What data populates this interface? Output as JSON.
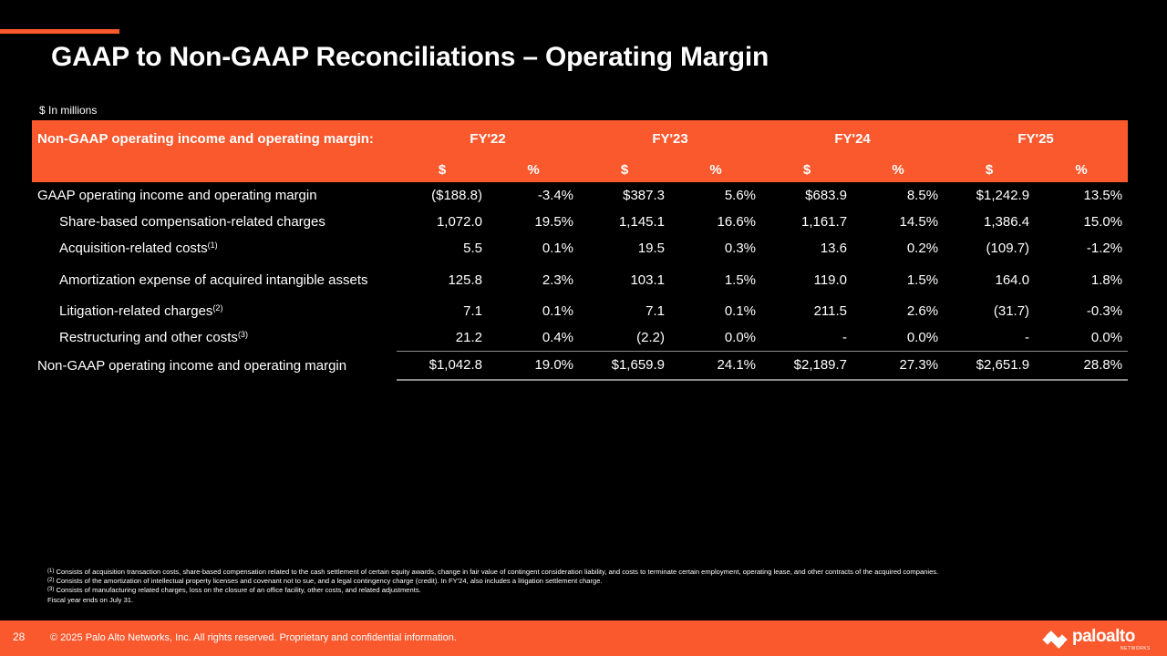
{
  "title": "GAAP to Non-GAAP Reconciliations – Operating Margin",
  "units": "$ In millions",
  "table": {
    "header_label": "Non-GAAP operating income and operating margin:",
    "years": [
      "FY'22",
      "FY'23",
      "FY'24",
      "FY'25"
    ],
    "sub_headers": {
      "dollar": "$",
      "percent": "%"
    },
    "rows": [
      {
        "label": "GAAP operating income and operating margin",
        "sup": "",
        "values": [
          "($188.8)",
          "-3.4%",
          "$387.3",
          "5.6%",
          "$683.9",
          "8.5%",
          "$1,242.9",
          "13.5%"
        ]
      },
      {
        "label": "Share-based compensation-related charges",
        "sup": "",
        "values": [
          "1,072.0",
          "19.5%",
          "1,145.1",
          "16.6%",
          "1,161.7",
          "14.5%",
          "1,386.4",
          "15.0%"
        ]
      },
      {
        "label": "Acquisition-related costs",
        "sup": "(1)",
        "values": [
          "5.5",
          "0.1%",
          "19.5",
          "0.3%",
          "13.6",
          "0.2%",
          "(109.7)",
          "-1.2%"
        ]
      },
      {
        "label": "Amortization expense of acquired intangible assets",
        "sup": "",
        "values": [
          "125.8",
          "2.3%",
          "103.1",
          "1.5%",
          "119.0",
          "1.5%",
          "164.0",
          "1.8%"
        ]
      },
      {
        "label": "Litigation-related charges",
        "sup": "(2)",
        "values": [
          "7.1",
          "0.1%",
          "7.1",
          "0.1%",
          "211.5",
          "2.6%",
          "(31.7)",
          "-0.3%"
        ]
      },
      {
        "label": "Restructuring and other costs",
        "sup": "(3)",
        "values": [
          "21.2",
          "0.4%",
          "(2.2)",
          "0.0%",
          "-",
          "0.0%",
          "-",
          "0.0%"
        ]
      },
      {
        "label": "Non-GAAP operating income and operating margin",
        "sup": "",
        "values": [
          "$1,042.8",
          "19.0%",
          "$1,659.9",
          "24.1%",
          "$2,189.7",
          "27.3%",
          "$2,651.9",
          "28.8%"
        ]
      }
    ]
  },
  "footnotes": {
    "n1": {
      "mark": "(1)",
      "text": " Consists of acquisition transaction costs, share-based compensation related to the cash settlement of certain equity awards, change in fair value of contingent consideration liability, and costs to terminate certain employment, operating lease, and other contracts of the acquired companies."
    },
    "n2": {
      "mark": "(2)",
      "text": " Consists of the amortization of intellectual property licenses and covenant not to sue, and a legal contingency charge (credit). In FY'24, also includes a litigation settlement charge."
    },
    "n3": {
      "mark": "(3)",
      "text": " Consists of manufacturing related charges, loss on the closure of an office facility, other costs, and related adjustments."
    },
    "fiscal": "Fiscal year ends on July 31."
  },
  "footer": {
    "page_number": "28",
    "copyright": "© 2025 Palo Alto Networks, Inc. All rights reserved. Proprietary and confidential information.",
    "logo_text": "paloalto",
    "logo_sub": "NETWORKS",
    "logo_icon": "paloalto-logo-icon"
  },
  "colors": {
    "accent": "#fa582d",
    "background": "#000000",
    "text": "#ffffff",
    "rule": "#8a8a8a"
  }
}
